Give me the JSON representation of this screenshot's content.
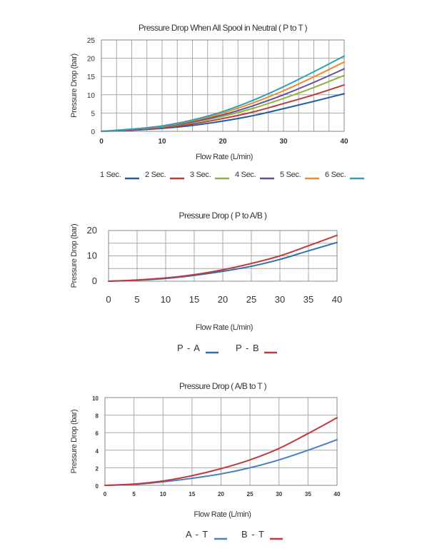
{
  "chart_data": [
    {
      "type": "line",
      "title": "Pressure Drop When All Spool in Neutral ( P to T )",
      "xlabel": "Flow Rate (L/min)",
      "ylabel": "Pressure Drop (bar)",
      "xlim": [
        0,
        40
      ],
      "ylim": [
        0,
        25
      ],
      "xticks": [
        0,
        10,
        20,
        30,
        40
      ],
      "yticks": [
        0,
        5,
        10,
        15,
        20,
        25
      ],
      "grid": true,
      "legend_position": "bottom",
      "x": [
        0,
        5,
        10,
        15,
        20,
        25,
        30,
        35,
        40
      ],
      "series": [
        {
          "name": "1 Sec.",
          "color": "#1f5fa8",
          "values": [
            0,
            0.3,
            0.8,
            1.6,
            2.8,
            4.3,
            6.2,
            8.2,
            10.3
          ]
        },
        {
          "name": "2 Sec.",
          "color": "#c0393b",
          "values": [
            0,
            0.4,
            1.0,
            2.0,
            3.5,
            5.3,
            7.6,
            10.0,
            12.7
          ]
        },
        {
          "name": "3 Sec.",
          "color": "#8bb33a",
          "values": [
            0,
            0.5,
            1.2,
            2.4,
            4.1,
            6.3,
            9.0,
            12.0,
            15.3
          ]
        },
        {
          "name": "4 Sec.",
          "color": "#6a4a9c",
          "values": [
            0,
            0.5,
            1.3,
            2.6,
            4.5,
            7.0,
            10.0,
            13.4,
            17.1
          ]
        },
        {
          "name": "5 Sec.",
          "color": "#f08a2c",
          "values": [
            0,
            0.6,
            1.4,
            2.9,
            5.0,
            7.8,
            11.1,
            14.9,
            19.0
          ]
        },
        {
          "name": "6 Sec.",
          "color": "#2ea0b9",
          "values": [
            0,
            0.6,
            1.5,
            3.1,
            5.4,
            8.5,
            12.2,
            16.3,
            20.6
          ]
        }
      ]
    },
    {
      "type": "line",
      "title": "Pressure Drop ( P to A/B )",
      "xlabel": "Flow Rate (L/min)",
      "ylabel": "Pressure Drop (bar)",
      "xlim": [
        0,
        40
      ],
      "ylim": [
        0,
        20
      ],
      "xticks": [
        0,
        5,
        10,
        15,
        20,
        25,
        30,
        35,
        40
      ],
      "yticks": [
        0,
        10,
        20
      ],
      "grid": true,
      "legend_position": "bottom",
      "x": [
        0,
        5,
        10,
        15,
        20,
        25,
        30,
        35,
        40
      ],
      "series": [
        {
          "name": "P - A",
          "color": "#2f6fae",
          "values": [
            0,
            0.4,
            1.1,
            2.3,
            3.9,
            5.9,
            8.6,
            12.0,
            15.3
          ]
        },
        {
          "name": "P - B",
          "color": "#c0393b",
          "values": [
            0,
            0.5,
            1.3,
            2.6,
            4.5,
            7.0,
            10.0,
            14.0,
            18.1
          ]
        }
      ]
    },
    {
      "type": "line",
      "title": "Pressure Drop ( A/B to T )",
      "xlabel": "Flow Rate (L/min)",
      "ylabel": "Pressure Drop (bar)",
      "xlim": [
        0,
        40
      ],
      "ylim": [
        0,
        10
      ],
      "xticks": [
        0,
        5,
        10,
        15,
        20,
        25,
        30,
        35,
        40
      ],
      "yticks": [
        0,
        2,
        4,
        6,
        8,
        10
      ],
      "grid": true,
      "legend_position": "bottom",
      "x": [
        0,
        5,
        10,
        15,
        20,
        25,
        30,
        35,
        40
      ],
      "series": [
        {
          "name": "A - T",
          "color": "#4a7fc0",
          "values": [
            0,
            0.1,
            0.4,
            0.8,
            1.3,
            2.0,
            2.9,
            4.0,
            5.2
          ]
        },
        {
          "name": "B - T",
          "color": "#c0393b",
          "values": [
            0,
            0.15,
            0.5,
            1.1,
            1.9,
            2.9,
            4.2,
            5.9,
            7.7
          ]
        }
      ]
    }
  ]
}
